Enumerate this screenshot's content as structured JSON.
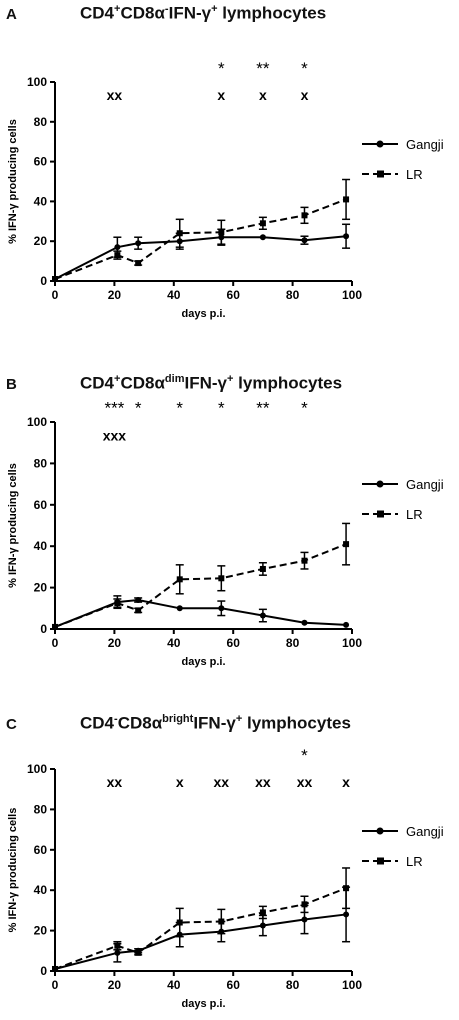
{
  "chart_data": [
    {
      "type": "line",
      "panel_label": "A",
      "title": {
        "part1": "CD4",
        "sup1": "+",
        "part2": "CD8α",
        "sup2": "-",
        "part3": "IFN-γ",
        "sup3": "+",
        "part4": " lymphocytes"
      },
      "xlabel": "days p.i.",
      "ylabel": "% IFN-γ producing cells",
      "xlim": [
        0,
        100
      ],
      "ylim": [
        0,
        100
      ],
      "xticks": [
        0,
        20,
        40,
        60,
        80,
        100
      ],
      "yticks": [
        0,
        20,
        40,
        60,
        80,
        100
      ],
      "series": [
        {
          "name": "Gangji",
          "style": "solid",
          "marker": "circle",
          "x": [
            0,
            21,
            28,
            42,
            56,
            70,
            84,
            98
          ],
          "y": [
            1,
            17,
            19,
            20,
            22,
            22,
            20.5,
            22.5
          ],
          "err": [
            0,
            5,
            3,
            4,
            4,
            0,
            2,
            6
          ]
        },
        {
          "name": "LR",
          "style": "dashed",
          "marker": "square",
          "x": [
            0,
            21,
            28,
            42,
            56,
            70,
            84,
            98
          ],
          "y": [
            1,
            13,
            9,
            24,
            24.5,
            29,
            33,
            41
          ],
          "err": [
            0,
            2,
            1,
            7,
            6,
            3,
            4,
            10
          ]
        }
      ],
      "annotations": [
        {
          "x": 20,
          "row": 2,
          "text": "xx"
        },
        {
          "x": 56,
          "row": 1,
          "text": "*"
        },
        {
          "x": 56,
          "row": 2,
          "text": "x"
        },
        {
          "x": 70,
          "row": 1,
          "text": "**"
        },
        {
          "x": 70,
          "row": 2,
          "text": "x"
        },
        {
          "x": 84,
          "row": 1,
          "text": "*"
        },
        {
          "x": 84,
          "row": 2,
          "text": "x"
        }
      ]
    },
    {
      "type": "line",
      "panel_label": "B",
      "title": {
        "part1": "CD4",
        "sup1": "+",
        "part2": "CD8α",
        "sup2": "dim",
        "part3": "IFN-γ",
        "sup3": "+",
        "part4": " lymphocytes"
      },
      "xlabel": "days p.i.",
      "ylabel": "% IFN-γ producing cells",
      "xlim": [
        0,
        100
      ],
      "ylim": [
        0,
        100
      ],
      "xticks": [
        0,
        20,
        40,
        60,
        80,
        100
      ],
      "yticks": [
        0,
        20,
        40,
        60,
        80,
        100
      ],
      "series": [
        {
          "name": "Gangji",
          "style": "solid",
          "marker": "circle",
          "x": [
            0,
            21,
            28,
            42,
            56,
            70,
            84,
            98
          ],
          "y": [
            1,
            13,
            14,
            10,
            10,
            6.5,
            3,
            2
          ],
          "err": [
            0,
            3,
            1,
            0,
            3.5,
            3,
            0,
            0
          ]
        },
        {
          "name": "LR",
          "style": "dashed",
          "marker": "square",
          "x": [
            0,
            21,
            28,
            42,
            56,
            70,
            84,
            98
          ],
          "y": [
            1,
            12.5,
            9,
            24,
            24.5,
            29,
            33,
            41
          ],
          "err": [
            0,
            2,
            1,
            7,
            6,
            3,
            4,
            10
          ]
        }
      ],
      "annotations": [
        {
          "x": 20,
          "row": 1,
          "text": "***"
        },
        {
          "x": 20,
          "row": 2,
          "text": "xxx"
        },
        {
          "x": 28,
          "row": 1,
          "text": "*"
        },
        {
          "x": 42,
          "row": 1,
          "text": "*"
        },
        {
          "x": 56,
          "row": 1,
          "text": "*"
        },
        {
          "x": 70,
          "row": 1,
          "text": "**"
        },
        {
          "x": 84,
          "row": 1,
          "text": "*"
        }
      ]
    },
    {
      "type": "line",
      "panel_label": "C",
      "title": {
        "part1": "CD4",
        "sup1": "-",
        "part2": "CD8α",
        "sup2": "bright",
        "part3": "IFN-γ",
        "sup3": "+",
        "part4": " lymphocytes"
      },
      "xlabel": "days p.i.",
      "ylabel": "% IFN-γ producing cells",
      "xlim": [
        0,
        100
      ],
      "ylim": [
        0,
        100
      ],
      "xticks": [
        0,
        20,
        40,
        60,
        80,
        100
      ],
      "yticks": [
        0,
        20,
        40,
        60,
        80,
        100
      ],
      "series": [
        {
          "name": "Gangji",
          "style": "solid",
          "marker": "circle",
          "x": [
            0,
            21,
            28,
            42,
            56,
            70,
            84,
            98
          ],
          "y": [
            1,
            9,
            10,
            18,
            19.5,
            22.5,
            25.5,
            28
          ],
          "err": [
            0,
            4.5,
            1,
            6,
            5,
            5,
            7,
            13.5
          ]
        },
        {
          "name": "LR",
          "style": "dashed",
          "marker": "square",
          "x": [
            0,
            21,
            28,
            42,
            56,
            70,
            84,
            98
          ],
          "y": [
            1,
            12.5,
            9,
            24,
            24.5,
            29,
            33,
            41
          ],
          "err": [
            0,
            2,
            1,
            7,
            6,
            3,
            4,
            10
          ]
        }
      ],
      "annotations": [
        {
          "x": 20,
          "row": 2,
          "text": "xx"
        },
        {
          "x": 42,
          "row": 2,
          "text": "x"
        },
        {
          "x": 56,
          "row": 2,
          "text": "xx"
        },
        {
          "x": 70,
          "row": 2,
          "text": "xx"
        },
        {
          "x": 84,
          "row": 1,
          "text": "*"
        },
        {
          "x": 84,
          "row": 2,
          "text": "xx"
        },
        {
          "x": 98,
          "row": 2,
          "text": "x"
        }
      ]
    }
  ]
}
